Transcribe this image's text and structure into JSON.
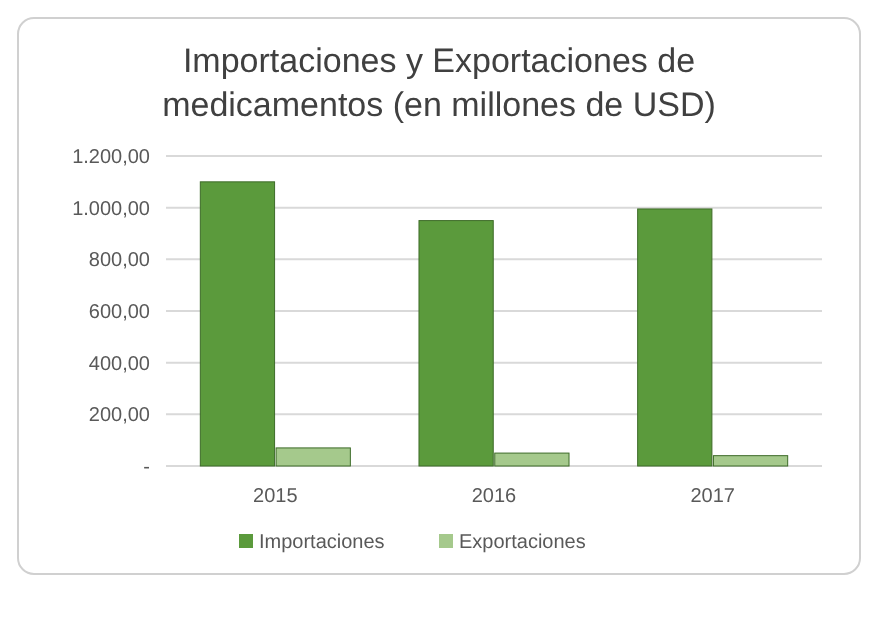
{
  "chart_data": {
    "type": "bar",
    "title": "Importaciones y Exportaciones de medicamentos (en millones de USD)",
    "categories": [
      "2015",
      "2016",
      "2017"
    ],
    "series": [
      {
        "name": "Importaciones",
        "color": "#5b9a3c",
        "values": [
          1100,
          950,
          995
        ]
      },
      {
        "name": "Exportaciones",
        "color": "#a5c98c",
        "values": [
          70,
          50,
          40
        ]
      }
    ],
    "ylim": [
      0,
      1200
    ],
    "yticks": [
      {
        "value": 0,
        "label": "-"
      },
      {
        "value": 200,
        "label": "200,00"
      },
      {
        "value": 400,
        "label": "400,00"
      },
      {
        "value": 600,
        "label": "600,00"
      },
      {
        "value": 800,
        "label": "800,00"
      },
      {
        "value": 1000,
        "label": "1.000,00"
      },
      {
        "value": 1200,
        "label": "1.200,00"
      }
    ],
    "grid": "y",
    "legend": "bottom"
  }
}
